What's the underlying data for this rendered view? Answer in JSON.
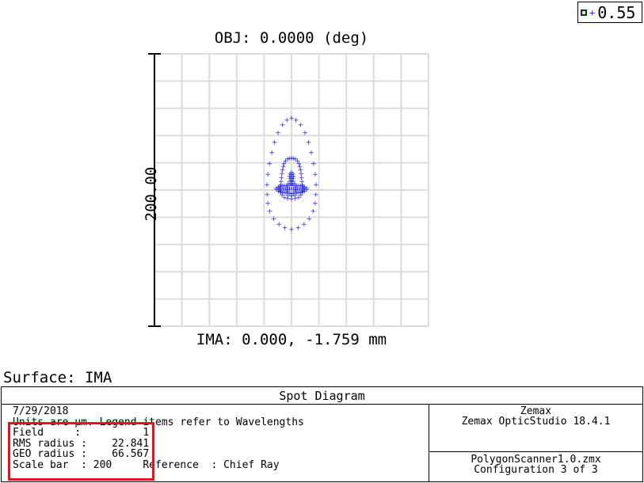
{
  "legend": {
    "label": "0.55",
    "symbol_color": "#2b2bd8"
  },
  "chart_data": {
    "type": "scatter",
    "title": "OBJ: 0.0000 (deg)",
    "xlabel": "IMA: 0.000, -1.759 mm",
    "ylabel": "200.00",
    "scale_bar": 200,
    "units": "µm",
    "xlim": [
      -100,
      100
    ],
    "ylim": [
      -100,
      100
    ],
    "grid": true,
    "series": [
      {
        "name": "0.55",
        "color": "#2b2bd8",
        "points": [
          [
            0.0,
            -28.8
          ],
          [
            4.8,
            -27.6
          ],
          [
            9.2,
            -24.9
          ],
          [
            12.9,
            -20.8
          ],
          [
            15.8,
            -15.5
          ],
          [
            17.3,
            -9.7
          ],
          [
            17.8,
            -3.3
          ],
          [
            17.9,
            4.0
          ],
          [
            17.3,
            11.6
          ],
          [
            16.1,
            19.6
          ],
          [
            14.4,
            27.5
          ],
          [
            12.5,
            35.3
          ],
          [
            9.8,
            42.1
          ],
          [
            6.6,
            48.0
          ],
          [
            3.3,
            51.4
          ],
          [
            0.0,
            52.8
          ],
          [
            -3.3,
            51.4
          ],
          [
            -6.6,
            48.0
          ],
          [
            -9.8,
            42.1
          ],
          [
            -12.5,
            35.3
          ],
          [
            -14.4,
            27.5
          ],
          [
            -16.1,
            19.6
          ],
          [
            -17.3,
            11.6
          ],
          [
            -17.9,
            4.0
          ],
          [
            -17.8,
            -3.3
          ],
          [
            -17.3,
            -9.7
          ],
          [
            -15.8,
            -15.5
          ],
          [
            -12.9,
            -20.8
          ],
          [
            -9.2,
            -24.9
          ],
          [
            -4.8,
            -27.6
          ],
          [
            0.0,
            -6.3
          ],
          [
            2.8,
            -6.0
          ],
          [
            5.2,
            -5.2
          ],
          [
            6.9,
            -3.6
          ],
          [
            7.8,
            -1.5
          ],
          [
            7.9,
            1.0
          ],
          [
            7.8,
            3.7
          ],
          [
            7.6,
            6.5
          ],
          [
            7.3,
            9.3
          ],
          [
            7.0,
            12.1
          ],
          [
            6.6,
            14.8
          ],
          [
            6.0,
            17.3
          ],
          [
            5.4,
            19.6
          ],
          [
            4.3,
            21.6
          ],
          [
            2.9,
            23.0
          ],
          [
            1.6,
            23.4
          ],
          [
            0.0,
            23.5
          ],
          [
            -1.6,
            23.4
          ],
          [
            -2.9,
            23.0
          ],
          [
            -4.3,
            21.6
          ],
          [
            -5.4,
            19.6
          ],
          [
            -6.0,
            17.3
          ],
          [
            -6.6,
            14.8
          ],
          [
            -7.0,
            12.1
          ],
          [
            -7.3,
            9.3
          ],
          [
            -7.6,
            6.5
          ],
          [
            -7.8,
            3.7
          ],
          [
            -7.9,
            1.0
          ],
          [
            -7.8,
            -1.5
          ],
          [
            -6.9,
            -3.6
          ],
          [
            -5.2,
            -5.2
          ],
          [
            -2.8,
            -6.0
          ],
          [
            0.0,
            4.7
          ],
          [
            0.0,
            6.3
          ],
          [
            0.0,
            7.4
          ],
          [
            0.0,
            8.4
          ],
          [
            0.0,
            9.9
          ],
          [
            0.0,
            11.4
          ],
          [
            0.0,
            13.2
          ],
          [
            -1.1,
            4.8
          ],
          [
            1.1,
            4.8
          ],
          [
            -1.1,
            6.7
          ],
          [
            1.1,
            6.7
          ],
          [
            -1.1,
            8.7
          ],
          [
            1.1,
            8.7
          ],
          [
            -1.5,
            10.2
          ],
          [
            1.5,
            10.2
          ],
          [
            -1.1,
            12.0
          ],
          [
            1.1,
            12.0
          ],
          [
            -11.0,
            0.5
          ],
          [
            -9.6,
            -0.5
          ],
          [
            -8.4,
            -0.9
          ],
          [
            -6.7,
            -1.6
          ],
          [
            -5.3,
            -1.5
          ],
          [
            -4.0,
            -1.9
          ],
          [
            -2.5,
            -2.2
          ],
          [
            -1.2,
            -2.4
          ],
          [
            0.0,
            -2.5
          ],
          [
            1.2,
            -2.4
          ],
          [
            2.5,
            -2.2
          ],
          [
            4.0,
            -1.9
          ],
          [
            5.3,
            -1.5
          ],
          [
            6.7,
            -1.6
          ],
          [
            8.4,
            -0.9
          ],
          [
            9.6,
            -0.5
          ],
          [
            11.0,
            0.5
          ],
          [
            -11.0,
            1.4
          ],
          [
            -9.6,
            2.4
          ],
          [
            -8.4,
            2.9
          ],
          [
            -6.7,
            3.2
          ],
          [
            -5.3,
            3.3
          ],
          [
            -4.0,
            3.5
          ],
          [
            -2.5,
            3.6
          ],
          [
            -1.2,
            3.6
          ],
          [
            0.0,
            3.7
          ],
          [
            1.2,
            3.6
          ],
          [
            2.5,
            3.6
          ],
          [
            4.0,
            3.5
          ],
          [
            5.3,
            3.3
          ],
          [
            6.7,
            3.2
          ],
          [
            8.4,
            2.9
          ],
          [
            9.6,
            2.4
          ],
          [
            11.0,
            1.4
          ],
          [
            -9.0,
            1.0
          ],
          [
            -7.5,
            1.0
          ],
          [
            -6.0,
            1.0
          ],
          [
            -4.5,
            1.0
          ],
          [
            -3.0,
            1.0
          ],
          [
            -1.5,
            1.0
          ],
          [
            0.0,
            1.0
          ],
          [
            1.5,
            1.0
          ],
          [
            3.0,
            1.0
          ],
          [
            4.5,
            1.0
          ],
          [
            6.0,
            1.0
          ],
          [
            7.5,
            1.0
          ],
          [
            9.0,
            1.0
          ],
          [
            -2.5,
            -3.9
          ],
          [
            0.0,
            -4.3
          ],
          [
            2.5,
            -3.9
          ],
          [
            -2.5,
            -1.1
          ],
          [
            2.5,
            -1.1
          ],
          [
            -3.2,
            0.4
          ],
          [
            3.2,
            0.4
          ],
          [
            -3.2,
            2.0
          ],
          [
            3.2,
            2.0
          ],
          [
            -2.5,
            4.6
          ],
          [
            2.5,
            4.6
          ]
        ]
      }
    ]
  },
  "surface_label": "Surface: IMA",
  "info": {
    "title": "Spot Diagram",
    "date": "7/29/2018",
    "units_line": "Units are µm. Legend items refer to Wavelengths",
    "field_line": "Field     :          1",
    "rms_line": "RMS radius :    22.841",
    "geo_line": "GEO radius :    66.567",
    "scale_line": "Scale bar  : 200     Reference  : Chief Ray",
    "company": "Zemax",
    "software": "Zemax OpticStudio 18.4.1",
    "file": "PolygonScanner1.0.zmx",
    "config": "Configuration 3 of 3"
  },
  "highlight_color": "#e0141e"
}
